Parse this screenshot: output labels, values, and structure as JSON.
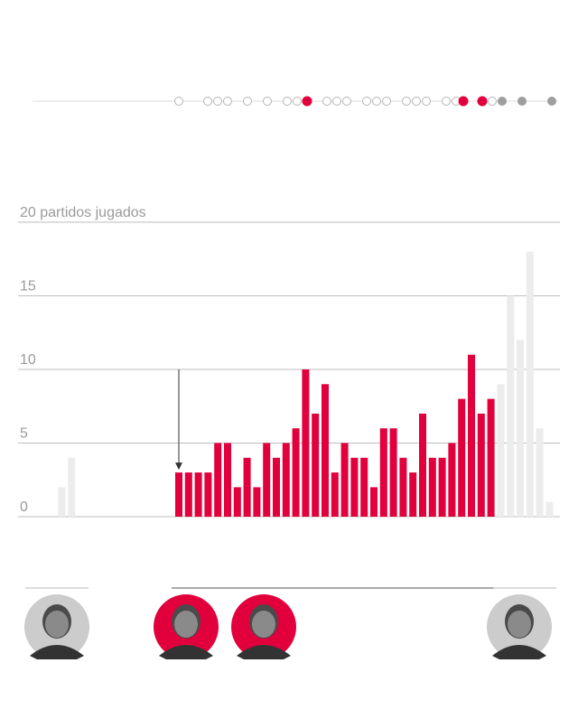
{
  "colors": {
    "highlight": "#e1003c",
    "muted": "#ececec",
    "grid": "#bdbdbd",
    "axis_text": "#9a9a9a",
    "dot_future": "#9e9e9e",
    "dot_empty": "#b5b5b5",
    "portrait_neutral": "#cccccc"
  },
  "timeline": {
    "dots": [
      {
        "state": "empty"
      },
      {
        "state": "empty"
      },
      {
        "state": "empty"
      },
      {
        "state": "empty"
      },
      {
        "state": "empty"
      },
      {
        "state": "empty"
      },
      {
        "state": "empty"
      },
      {
        "state": "empty"
      },
      {
        "state": "filled"
      },
      {
        "state": "empty"
      },
      {
        "state": "empty"
      },
      {
        "state": "empty"
      },
      {
        "state": "empty"
      },
      {
        "state": "empty"
      },
      {
        "state": "empty"
      },
      {
        "state": "empty"
      },
      {
        "state": "empty"
      },
      {
        "state": "empty"
      },
      {
        "state": "empty"
      },
      {
        "state": "empty"
      },
      {
        "state": "filled"
      },
      {
        "state": "filled"
      },
      {
        "state": "empty"
      },
      {
        "state": "future"
      },
      {
        "state": "future"
      },
      {
        "state": "future"
      }
    ]
  },
  "chart_data": {
    "type": "bar",
    "y_title": "20 partidos jugados",
    "y_ticks": [
      {
        "value": 0,
        "label": "0"
      },
      {
        "value": 5,
        "label": "5"
      },
      {
        "value": 10,
        "label": "10"
      },
      {
        "value": 15,
        "label": "15"
      },
      {
        "value": 20,
        "label": ""
      }
    ],
    "ylim": [
      0,
      20
    ],
    "grid": true,
    "series": [
      {
        "values": [
          0,
          0,
          0,
          2,
          4,
          0,
          0,
          0,
          0,
          0,
          0,
          0,
          0,
          0,
          0,
          3,
          3,
          3,
          3,
          5,
          5,
          2,
          4,
          2,
          5,
          4,
          5,
          6,
          10,
          7,
          9,
          3,
          5,
          4,
          4,
          2,
          6,
          6,
          4,
          3,
          7,
          4,
          4,
          5,
          8,
          11,
          7,
          8,
          9,
          15,
          12,
          18,
          6,
          1
        ],
        "highlight": [
          false,
          false,
          false,
          false,
          false,
          false,
          false,
          false,
          false,
          false,
          false,
          false,
          false,
          false,
          false,
          true,
          true,
          true,
          true,
          true,
          true,
          true,
          true,
          true,
          true,
          true,
          true,
          true,
          true,
          true,
          true,
          true,
          true,
          true,
          true,
          true,
          true,
          true,
          true,
          true,
          true,
          true,
          true,
          true,
          true,
          true,
          true,
          true,
          false,
          false,
          false,
          false,
          false,
          false
        ]
      }
    ],
    "annotation": {
      "type": "arrow",
      "bar_index": 15
    }
  },
  "coaches": [
    {
      "portrait": "portrait-coach-1",
      "highlight": false,
      "bar_start": 0,
      "bar_end": 5
    },
    {
      "portrait": "portrait-coach-2",
      "highlight": true,
      "bar_start": 15,
      "bar_end": 20
    },
    {
      "portrait": "portrait-coach-3",
      "highlight": true,
      "bar_start": 21,
      "bar_end": 47
    },
    {
      "portrait": "portrait-coach-4",
      "highlight": false,
      "bar_start": 48,
      "bar_end": 53
    }
  ]
}
